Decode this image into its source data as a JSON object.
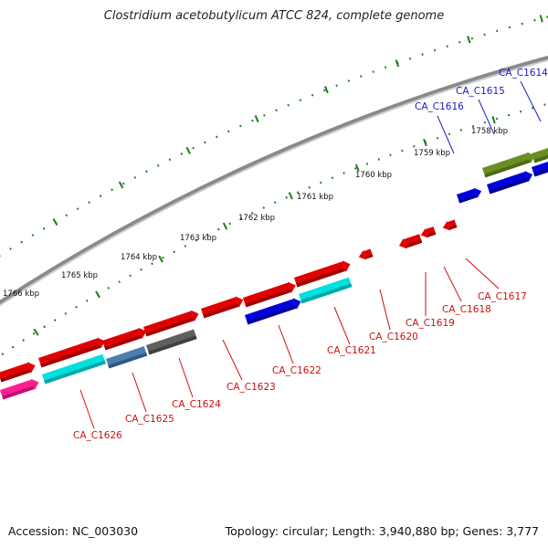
{
  "title": "Clostridium acetobutylicum ATCC 824, complete genome",
  "footer": {
    "accession": "Accession: NC_003030",
    "summary": "Topology: circular; Length: 3,940,880 bp; Genes: 3,777"
  },
  "colors": {
    "backbone": "#8a8a8a",
    "ticks": "#1e7a1e",
    "label_top": "#1a1acc",
    "label_bottom": "#cc1111"
  },
  "scale_labels": [
    {
      "text": "1758 kbp"
    },
    {
      "text": "1759 kbp"
    },
    {
      "text": "1760 kbp"
    },
    {
      "text": "1761 kbp"
    },
    {
      "text": "1762 kbp"
    },
    {
      "text": "1763 kbp"
    },
    {
      "text": "1764 kbp"
    },
    {
      "text": "1765 kbp"
    },
    {
      "text": "1766 kbp"
    }
  ],
  "top_labels": [
    "CA_C1614",
    "CA_C1615",
    "CA_C1616"
  ],
  "bottom_labels": [
    "CA_C1617",
    "CA_C1618",
    "CA_C1619",
    "CA_C1620",
    "CA_C1621",
    "CA_C1622",
    "CA_C1623",
    "CA_C1624",
    "CA_C1625",
    "CA_C1626"
  ]
}
